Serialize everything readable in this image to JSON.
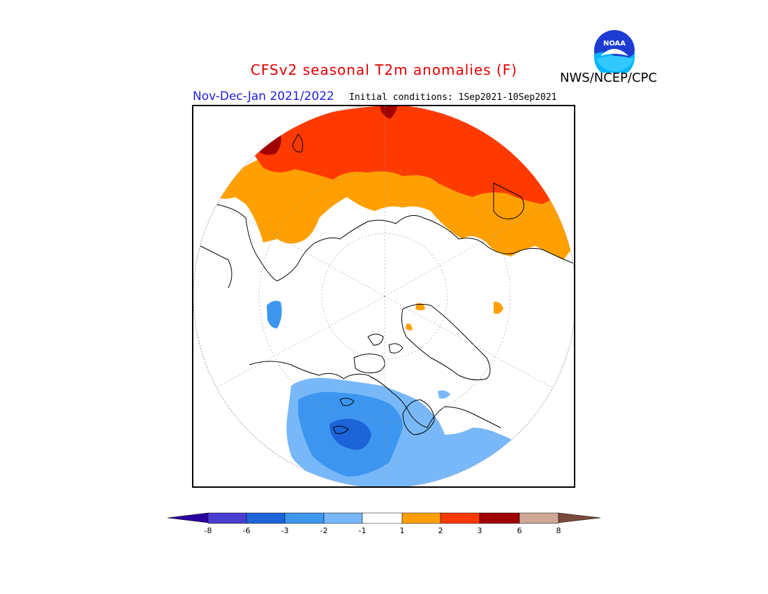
{
  "header": {
    "title": "CFSv2 seasonal T2m anomalies (F)",
    "title_color": "#e00000",
    "season": "Nov-Dec-Jan 2021/2022",
    "season_color": "#2020e0",
    "initial_conditions": "Initial conditions: 1Sep2021-10Sep2021",
    "agency": "NWS/NCEP/CPC",
    "logo_text": "NOAA"
  },
  "legend": {
    "ticks": [
      "-8",
      "-6",
      "-3",
      "-2",
      "-1",
      "1",
      "2",
      "3",
      "6",
      "8"
    ],
    "colors": [
      "#2a00a0",
      "#4a3fd0",
      "#1c64d8",
      "#3c96f0",
      "#78b8f8",
      "#ffffff",
      "#ffa000",
      "#ff3a00",
      "#a00000",
      "#d0a898",
      "#7a4a3a"
    ]
  },
  "map": {
    "projection": "polar stereographic (Northern Hemisphere)",
    "colors": {
      "warm_1_2": "#ffa000",
      "warm_2_3": "#ff3a00",
      "warm_3_6": "#a00000",
      "cool_1_2": "#78b8f8",
      "cool_2_3": "#3c96f0",
      "cool_3_6": "#1c64d8"
    }
  }
}
